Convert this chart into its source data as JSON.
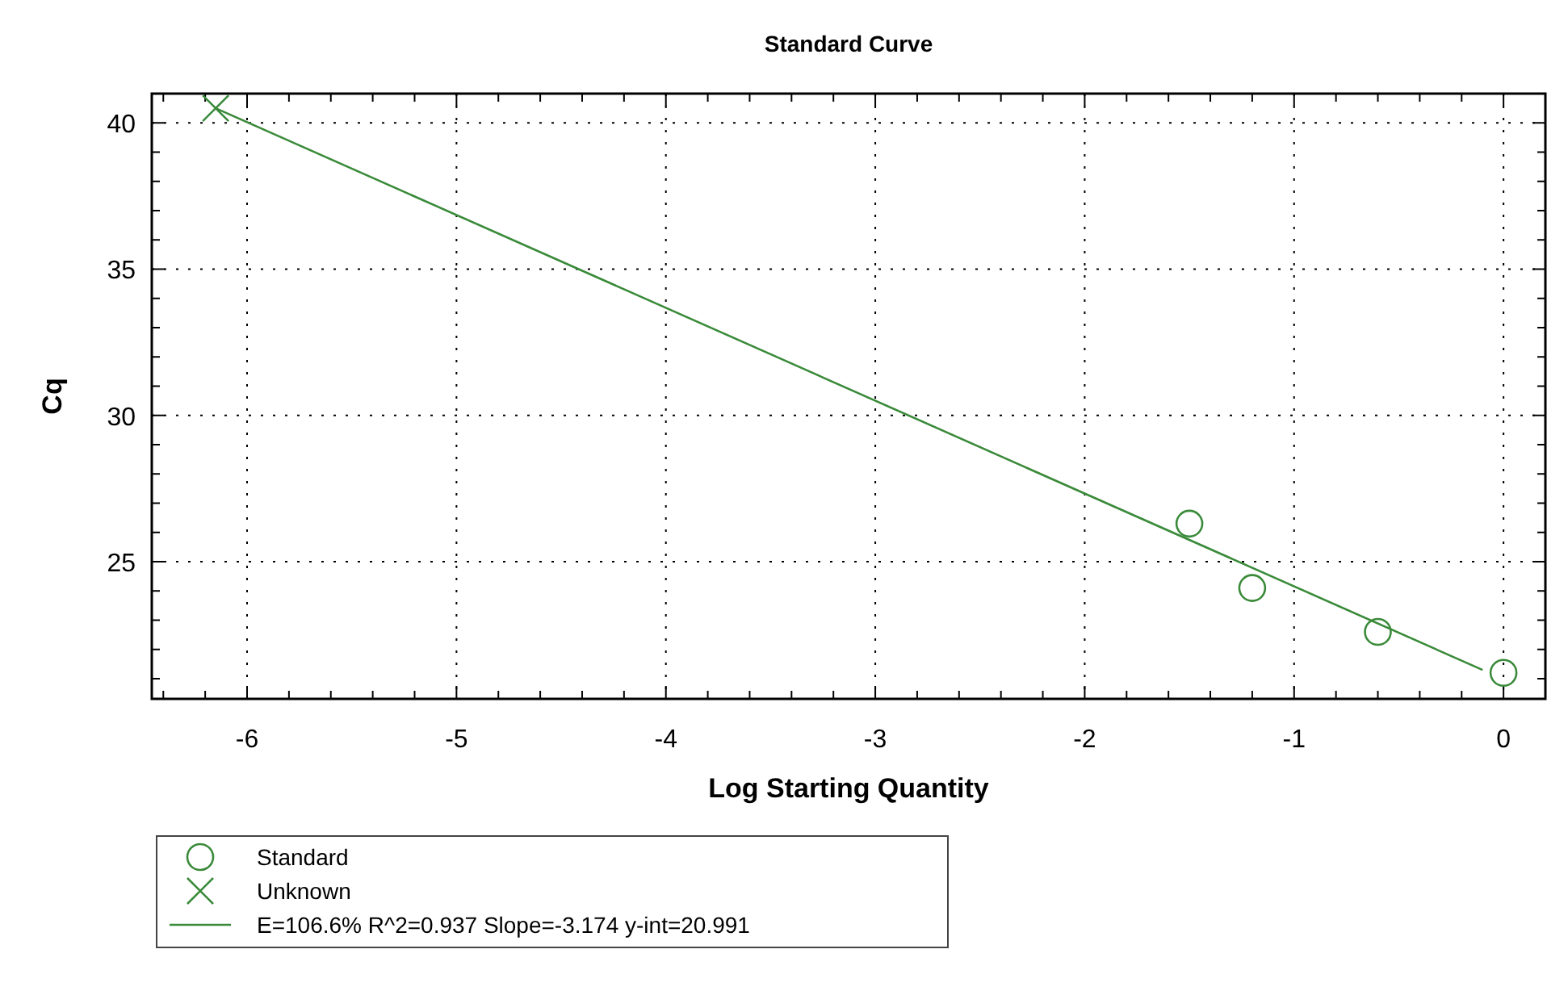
{
  "chart_data": {
    "type": "scatter",
    "title": "Standard Curve",
    "xlabel": "Log Starting Quantity",
    "ylabel": "Cq",
    "xlim": [
      -6.455,
      0.2
    ],
    "ylim": [
      20.31,
      41
    ],
    "xticks": [
      {
        "value": -6.4,
        "label": null
      },
      {
        "value": -6.2,
        "label": null
      },
      -6,
      {
        "value": -5.8,
        "label": null
      },
      {
        "value": -5.6,
        "label": null
      },
      {
        "value": -5.4,
        "label": null
      },
      {
        "value": -5.2,
        "label": null
      },
      -5,
      {
        "value": -4.8,
        "label": null
      },
      {
        "value": -4.6,
        "label": null
      },
      {
        "value": -4.4,
        "label": null
      },
      {
        "value": -4.2,
        "label": null
      },
      -4,
      {
        "value": -3.8,
        "label": null
      },
      {
        "value": -3.6,
        "label": null
      },
      {
        "value": -3.4,
        "label": null
      },
      {
        "value": -3.2,
        "label": null
      },
      -3,
      {
        "value": -2.8,
        "label": null
      },
      {
        "value": -2.6,
        "label": null
      },
      {
        "value": -2.4,
        "label": null
      },
      {
        "value": -2.2,
        "label": null
      },
      -2,
      {
        "value": -1.8,
        "label": null
      },
      {
        "value": -1.6,
        "label": null
      },
      {
        "value": -1.4,
        "label": null
      },
      {
        "value": -1.2,
        "label": null
      },
      -1,
      {
        "value": -0.8,
        "label": null
      },
      {
        "value": -0.6,
        "label": null
      },
      {
        "value": -0.4,
        "label": null
      },
      {
        "value": -0.2,
        "label": null
      },
      0,
      {
        "value": 0.2,
        "label": null
      }
    ],
    "yticks": [
      {
        "value": 21,
        "label": null
      },
      {
        "value": 22,
        "label": null
      },
      {
        "value": 23,
        "label": null
      },
      {
        "value": 24,
        "label": null
      },
      25,
      {
        "value": 26,
        "label": null
      },
      {
        "value": 27,
        "label": null
      },
      {
        "value": 28,
        "label": null
      },
      {
        "value": 29,
        "label": null
      },
      30,
      {
        "value": 31,
        "label": null
      },
      {
        "value": 32,
        "label": null
      },
      {
        "value": 33,
        "label": null
      },
      {
        "value": 34,
        "label": null
      },
      35,
      {
        "value": 36,
        "label": null
      },
      {
        "value": 37,
        "label": null
      },
      {
        "value": 38,
        "label": null
      },
      {
        "value": 39,
        "label": null
      },
      40,
      {
        "value": 41,
        "label": null
      }
    ],
    "grid": true,
    "legend": "bottom left",
    "series": [
      {
        "name": "Standard",
        "marker": "circle",
        "color": "#3a8a3a",
        "x": [
          -1.5,
          -1.2,
          -0.6,
          0
        ],
        "values": [
          26.3,
          24.1,
          22.6,
          21.2
        ]
      },
      {
        "name": "Unknown",
        "marker": "cross",
        "color": "#3a8a3a",
        "x": [
          -6.15
        ],
        "values": [
          40.5
        ]
      },
      {
        "name": "E=106.6% R^2=0.937 Slope=-3.174 y-int=20.991",
        "type": "line",
        "marker": "none",
        "line_style": "solid",
        "color": "#3a8a3a",
        "x": [
          -6.15,
          -0.1
        ],
        "values": [
          40.5,
          21.3
        ]
      }
    ]
  }
}
